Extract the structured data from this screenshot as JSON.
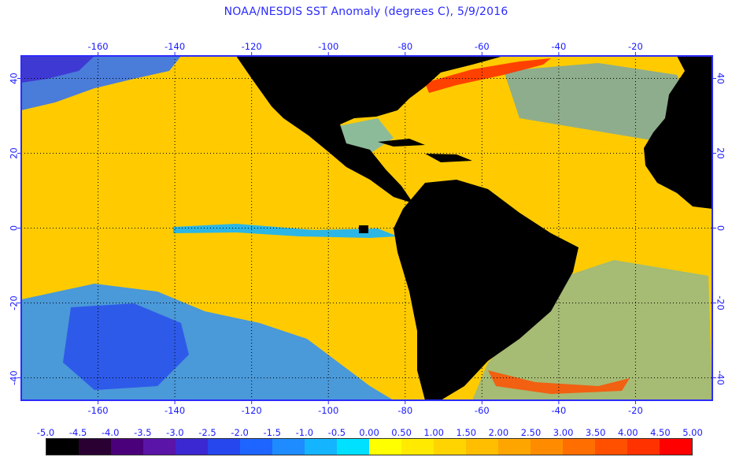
{
  "title": "NOAA/NESDIS SST Anomaly (degrees C), 5/9/2016",
  "map": {
    "lon_range": [
      -180,
      0
    ],
    "lat_range": [
      -46,
      46
    ],
    "lon_ticks": [
      -160,
      -140,
      -120,
      -100,
      -80,
      -60,
      -40,
      -20
    ],
    "lat_ticks": [
      40,
      20,
      0,
      -20,
      -40
    ],
    "gridlines": "dotted",
    "land_color": "#000000",
    "border_color": "#2b2bff"
  },
  "colorbar": {
    "labels": [
      "-5.0",
      "-4.5",
      "-4.0",
      "-3.5",
      "-3.0",
      "-2.5",
      "-2.0",
      "-1.5",
      "-1.0",
      "-0.5",
      "0.00",
      "0.50",
      "1.00",
      "1.50",
      "2.00",
      "2.50",
      "3.00",
      "3.50",
      "4.00",
      "4.50",
      "5.00"
    ],
    "colors": [
      "#000000",
      "#2a0033",
      "#4a007a",
      "#5a14a8",
      "#3c28d2",
      "#2646ee",
      "#1e64ff",
      "#1e8cff",
      "#14b4ff",
      "#00e0ff",
      "#ffff00",
      "#ffea00",
      "#ffd400",
      "#ffbe00",
      "#ffa500",
      "#ff8c00",
      "#ff6e00",
      "#ff5000",
      "#ff3200",
      "#ff0000"
    ]
  }
}
